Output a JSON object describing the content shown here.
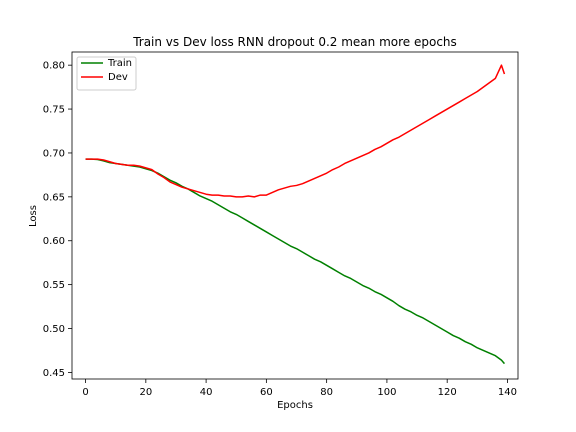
{
  "chart_data": {
    "type": "line",
    "title": "Train vs Dev loss RNN dropout 0.2 mean more epochs",
    "xlabel": "Epochs",
    "ylabel": "Loss",
    "xlim": [
      -4.5,
      143.5
    ],
    "ylim": [
      0.4425,
      0.815
    ],
    "xticks": [
      0,
      20,
      40,
      60,
      80,
      100,
      120,
      140
    ],
    "yticks": [
      0.45,
      0.5,
      0.55,
      0.6,
      0.65,
      0.7,
      0.75,
      0.8
    ],
    "legend_position": "top-left",
    "grid": false,
    "series": [
      {
        "name": "Train",
        "color": "#008000",
        "x": [
          0,
          2,
          4,
          6,
          8,
          10,
          12,
          14,
          16,
          18,
          20,
          22,
          24,
          26,
          28,
          30,
          32,
          34,
          36,
          38,
          40,
          42,
          44,
          46,
          48,
          50,
          52,
          54,
          56,
          58,
          60,
          62,
          64,
          66,
          68,
          70,
          72,
          74,
          76,
          78,
          80,
          82,
          84,
          86,
          88,
          90,
          92,
          94,
          96,
          98,
          100,
          102,
          104,
          106,
          108,
          110,
          112,
          114,
          116,
          118,
          120,
          122,
          124,
          126,
          128,
          130,
          132,
          134,
          136,
          138,
          139
        ],
        "values": [
          0.693,
          0.693,
          0.6925,
          0.691,
          0.689,
          0.688,
          0.687,
          0.686,
          0.685,
          0.684,
          0.682,
          0.68,
          0.677,
          0.673,
          0.669,
          0.666,
          0.662,
          0.659,
          0.655,
          0.651,
          0.648,
          0.645,
          0.641,
          0.637,
          0.633,
          0.63,
          0.626,
          0.622,
          0.618,
          0.614,
          0.61,
          0.606,
          0.602,
          0.598,
          0.594,
          0.591,
          0.587,
          0.583,
          0.579,
          0.576,
          0.572,
          0.568,
          0.564,
          0.56,
          0.557,
          0.553,
          0.549,
          0.546,
          0.542,
          0.539,
          0.535,
          0.531,
          0.526,
          0.522,
          0.519,
          0.515,
          0.512,
          0.508,
          0.504,
          0.5,
          0.496,
          0.492,
          0.489,
          0.485,
          0.482,
          0.478,
          0.475,
          0.472,
          0.469,
          0.464,
          0.46
        ]
      },
      {
        "name": "Dev",
        "color": "#ff0000",
        "x": [
          0,
          2,
          4,
          6,
          8,
          10,
          12,
          14,
          16,
          18,
          20,
          22,
          24,
          26,
          28,
          30,
          32,
          34,
          36,
          38,
          40,
          42,
          44,
          46,
          48,
          50,
          52,
          54,
          56,
          58,
          60,
          62,
          64,
          66,
          68,
          70,
          72,
          74,
          76,
          78,
          80,
          82,
          84,
          86,
          88,
          90,
          92,
          94,
          96,
          98,
          100,
          102,
          104,
          106,
          108,
          110,
          112,
          114,
          116,
          118,
          120,
          122,
          124,
          126,
          128,
          130,
          132,
          134,
          136,
          138,
          139
        ],
        "values": [
          0.693,
          0.693,
          0.693,
          0.692,
          0.69,
          0.688,
          0.687,
          0.686,
          0.686,
          0.685,
          0.683,
          0.681,
          0.676,
          0.672,
          0.667,
          0.664,
          0.661,
          0.659,
          0.657,
          0.655,
          0.653,
          0.652,
          0.652,
          0.651,
          0.651,
          0.65,
          0.65,
          0.651,
          0.65,
          0.652,
          0.652,
          0.655,
          0.658,
          0.66,
          0.662,
          0.663,
          0.665,
          0.668,
          0.671,
          0.674,
          0.677,
          0.681,
          0.684,
          0.688,
          0.691,
          0.694,
          0.697,
          0.7,
          0.704,
          0.707,
          0.711,
          0.715,
          0.718,
          0.722,
          0.726,
          0.73,
          0.734,
          0.738,
          0.742,
          0.746,
          0.75,
          0.754,
          0.758,
          0.762,
          0.766,
          0.77,
          0.775,
          0.78,
          0.785,
          0.8,
          0.79
        ]
      }
    ]
  }
}
